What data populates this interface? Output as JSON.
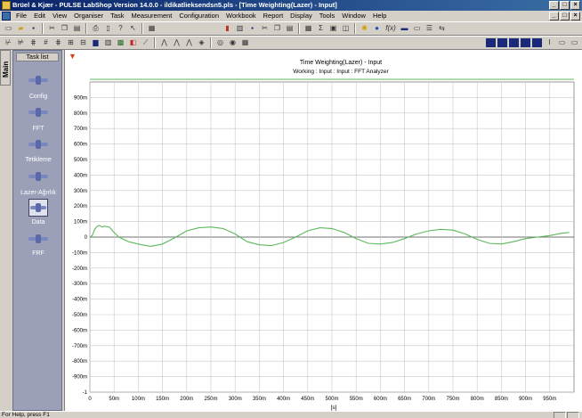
{
  "window": {
    "title": "Brüel & Kjær - PULSE LabShop Version 14.0.0 - ildikatlieksendsn5.pls - [Time Weighting(Lazer) - Input]",
    "buttons": [
      "_",
      "□",
      "×"
    ]
  },
  "menubar": {
    "items": [
      "File",
      "Edit",
      "View",
      "Organiser",
      "Task",
      "Measurement",
      "Configuration",
      "Workbook",
      "Report",
      "Display",
      "Tools",
      "Window",
      "Help"
    ],
    "mdi_buttons": [
      "_",
      "□",
      "×"
    ]
  },
  "toolbar1": {
    "icons": [
      "new-icon",
      "open-icon",
      "save-icon",
      "cut-icon",
      "copy-icon",
      "paste-icon",
      "print-icon",
      "print-preview-icon",
      "help-icon",
      "help-pointer-icon",
      "grid-icon",
      "book-icon",
      "list-icon",
      "save-disk-icon",
      "cut2-icon",
      "copy2-icon",
      "paste2-icon",
      "table-icon",
      "sigma-icon",
      "display-icon",
      "layout-icon",
      "star-icon",
      "dot-icon",
      "fx-icon",
      "monitor-icon",
      "window-icon",
      "bars-icon",
      "arrows-icon"
    ],
    "fx_label": "f(x)"
  },
  "toolbar2": {
    "icons": [
      "cursor1-icon",
      "cursor2-icon",
      "cursor3-icon",
      "cursor4-icon",
      "cursor5-icon",
      "cursor6-icon",
      "cursor7-icon",
      "chart-icon",
      "table2-icon",
      "img-icon",
      "color-icon",
      "line-icon",
      "peak-icon",
      "peak2-icon",
      "peak3-icon",
      "zoom-icon",
      "target-icon",
      "camera-icon",
      "grid2-icon"
    ]
  },
  "sidebar": {
    "tab_label": "Main",
    "header": "Task list",
    "items": [
      {
        "label": "Config"
      },
      {
        "label": "FFT"
      },
      {
        "label": "Tetikleme"
      },
      {
        "label": "Lazer-Ağırlık"
      },
      {
        "label": "Data"
      },
      {
        "label": "FRF"
      }
    ]
  },
  "chart_data": {
    "type": "line",
    "title": "Time Weighting(Lazer) - Input",
    "subtitle": "Working : Input : Input : FFT Analyzer",
    "xlabel": "[s]",
    "ylabel": "",
    "xlim": [
      0,
      1
    ],
    "ylim": [
      -1,
      1
    ],
    "x_ticks": [
      0,
      0.05,
      0.1,
      0.15,
      0.2,
      0.25,
      0.3,
      0.35,
      0.4,
      0.45,
      0.5,
      0.55,
      0.6,
      0.65,
      0.7,
      0.75,
      0.8,
      0.85,
      0.9,
      0.95
    ],
    "x_tick_labels": [
      "0",
      "50m",
      "100m",
      "150m",
      "200m",
      "250m",
      "300m",
      "350m",
      "400m",
      "450m",
      "500m",
      "550m",
      "600m",
      "650m",
      "700m",
      "750m",
      "800m",
      "850m",
      "900m",
      "950m"
    ],
    "y_ticks": [
      -1,
      -0.9,
      -0.8,
      -0.7,
      -0.6,
      -0.5,
      -0.4,
      -0.3,
      -0.2,
      -0.1,
      0,
      0.1,
      0.2,
      0.3,
      0.4,
      0.5,
      0.6,
      0.7,
      0.8,
      0.9
    ],
    "y_tick_labels": [
      "-1",
      "-900m",
      "-800m",
      "-700m",
      "-600m",
      "-500m",
      "-400m",
      "-300m",
      "-200m",
      "-100m",
      "0",
      "100m",
      "200m",
      "300m",
      "400m",
      "500m",
      "600m",
      "700m",
      "800m",
      "900m"
    ],
    "grid": true,
    "line_color": "#5cb85c",
    "series": [
      {
        "x": [
          0,
          0.005,
          0.01,
          0.015,
          0.02,
          0.025,
          0.03,
          0.04,
          0.05,
          0.06,
          0.08,
          0.1,
          0.125,
          0.15,
          0.175,
          0.2,
          0.225,
          0.25,
          0.275,
          0.3,
          0.325,
          0.35,
          0.375,
          0.4,
          0.425,
          0.45,
          0.475,
          0.5,
          0.525,
          0.55,
          0.575,
          0.6,
          0.625,
          0.65,
          0.675,
          0.7,
          0.725,
          0.75,
          0.775,
          0.8,
          0.825,
          0.85,
          0.875,
          0.9,
          0.925,
          0.95,
          0.975,
          0.99
        ],
        "y": [
          0,
          0.01,
          0.05,
          0.07,
          0.075,
          0.065,
          0.07,
          0.065,
          0.03,
          0.0,
          -0.03,
          -0.045,
          -0.06,
          -0.045,
          -0.005,
          0.04,
          0.06,
          0.065,
          0.055,
          0.02,
          -0.03,
          -0.05,
          -0.055,
          -0.035,
          0.0,
          0.04,
          0.06,
          0.055,
          0.03,
          -0.01,
          -0.04,
          -0.045,
          -0.035,
          -0.01,
          0.02,
          0.04,
          0.05,
          0.045,
          0.02,
          -0.015,
          -0.04,
          -0.045,
          -0.03,
          -0.01,
          0.0,
          0.01,
          0.025,
          0.03
        ]
      }
    ]
  },
  "statusbar": {
    "text": "For Help, press F1"
  }
}
